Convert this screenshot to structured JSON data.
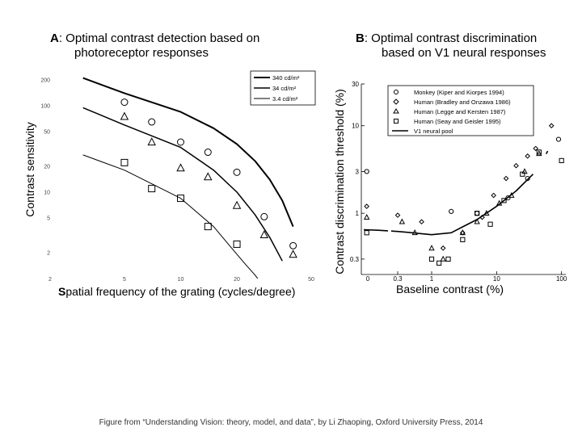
{
  "caption": "Figure from “Understanding Vision: theory, model, and data”, by Li Zhaoping,  Oxford University Press, 2014",
  "chart_data": [
    {
      "type": "scatter",
      "panel": "A",
      "title_prefix": "A",
      "title_line1": ": Optimal contrast detection based on",
      "title_line2": "photoreceptor responses",
      "xlabel_first": "S",
      "xlabel_rest": "patial frequency of the grating (cycles/degree)",
      "ylabel": "Contrast sensitivity",
      "xscale": "log",
      "yscale": "log",
      "xlim": [
        2,
        50
      ],
      "ylim": [
        1,
        300
      ],
      "xticks": [
        2,
        5,
        10,
        20,
        50
      ],
      "xtick_labels": [
        "2",
        "5",
        "10",
        "20",
        "50"
      ],
      "yticks": [
        2,
        5,
        10,
        20,
        50,
        100,
        200
      ],
      "ytick_labels": [
        "2",
        "5",
        "10",
        "20",
        "50",
        "100",
        "200"
      ],
      "legend_position": "top-right",
      "legend": [
        {
          "label": "340 cd/m²",
          "width": 2
        },
        {
          "label": "34 cd/m²",
          "width": 1.5
        },
        {
          "label": "3.4 cd/m²",
          "width": 1
        }
      ],
      "lines": [
        {
          "name": "340 cd/m²",
          "width": 2,
          "x": [
            3,
            5,
            10,
            15,
            20,
            25,
            30,
            35,
            40
          ],
          "y": [
            210,
            140,
            85,
            55,
            36,
            23,
            14,
            8,
            4
          ]
        },
        {
          "name": "34 cd/m²",
          "width": 1.5,
          "x": [
            3,
            5,
            10,
            15,
            20,
            25,
            30,
            35
          ],
          "y": [
            95,
            60,
            33,
            18,
            10,
            5.5,
            3,
            1.6
          ]
        },
        {
          "name": "3.4 cd/m²",
          "width": 1,
          "x": [
            3,
            5,
            10,
            15,
            18,
            22,
            25,
            28
          ],
          "y": [
            27,
            18,
            8.5,
            4,
            2.5,
            1.5,
            1.1,
            0.8
          ]
        }
      ],
      "series": [
        {
          "name": "circles",
          "marker": "circle",
          "x": [
            5,
            7,
            10,
            14,
            20,
            28,
            40
          ],
          "y": [
            110,
            65,
            38,
            29,
            17,
            5.2,
            2.4
          ]
        },
        {
          "name": "triangles",
          "marker": "triangle",
          "x": [
            5,
            7,
            10,
            14,
            20,
            28,
            40
          ],
          "y": [
            75,
            38,
            19,
            15,
            7,
            3.2,
            1.9
          ]
        },
        {
          "name": "squares",
          "marker": "square",
          "x": [
            5,
            7,
            10,
            14,
            20
          ],
          "y": [
            22,
            11,
            8.5,
            4,
            2.5
          ]
        }
      ]
    },
    {
      "type": "scatter",
      "panel": "B",
      "title_prefix": "B",
      "title_line1": ": Optimal contrast discrimination",
      "title_line2": "based on V1 neural responses",
      "xlabel": "Baseline contrast (%)",
      "ylabel": "Contrast discrimination threshold (%)",
      "xscale": "log",
      "yscale": "log",
      "xlim": [
        0.09,
        110
      ],
      "ylim": [
        0.2,
        30
      ],
      "xticks": [
        0.3,
        1,
        10,
        100
      ],
      "xtick_labels": [
        "0.3",
        "1",
        "10",
        "100"
      ],
      "zero_tick_label": "0",
      "yticks": [
        0.3,
        1,
        3,
        10,
        30
      ],
      "ytick_labels": [
        "0.3",
        "1",
        "3",
        "10",
        "30"
      ],
      "legend_position": "top-right",
      "legend": [
        {
          "label": "Monkey (Kiper and Kiorpes 1994)",
          "marker": "circle"
        },
        {
          "label": "Human (Bradley and Onzawa 1986)",
          "marker": "diamond"
        },
        {
          "label": "Human (Legge and Kersten 1987)",
          "marker": "triangle"
        },
        {
          "label": "Human (Seay and Geisler 1995)",
          "marker": "square"
        },
        {
          "label": "V1 neural pool",
          "marker": "line"
        }
      ],
      "neural_pool_line": {
        "x": [
          0.09,
          0.15,
          0.3,
          0.5,
          0.8,
          1,
          2,
          3,
          5,
          10,
          20,
          40,
          60,
          80,
          100
        ],
        "y": [
          0.65,
          0.64,
          0.62,
          0.6,
          0.58,
          0.57,
          0.6,
          0.7,
          0.85,
          1.2,
          1.8,
          3,
          5,
          8,
          12
        ]
      },
      "series": [
        {
          "name": "Monkey (Kiper and Kiorpes 1994)",
          "marker": "circle",
          "x": [
            0.1,
            2,
            5,
            15,
            30,
            90
          ],
          "y": [
            3,
            1.05,
            1,
            1.5,
            2.5,
            7
          ]
        },
        {
          "name": "Human (Bradley and Onzawa 1986)",
          "marker": "diamond",
          "x": [
            0.1,
            0.3,
            0.7,
            1.5,
            3,
            6,
            9,
            14,
            20,
            30,
            40,
            70
          ],
          "y": [
            1.2,
            0.95,
            0.8,
            0.4,
            0.6,
            0.9,
            1.6,
            2.5,
            3.5,
            4.5,
            5.5,
            10
          ]
        },
        {
          "name": "Human (Legge and Kersten 1987)",
          "marker": "triangle",
          "x": [
            0.1,
            0.35,
            0.55,
            1,
            1.5,
            3,
            5,
            7,
            11,
            17,
            27,
            45
          ],
          "y": [
            0.9,
            0.8,
            0.6,
            0.4,
            0.3,
            0.6,
            0.8,
            1,
            1.3,
            1.6,
            3,
            4.8
          ]
        },
        {
          "name": "Human (Seay and Geisler 1995)",
          "marker": "square",
          "x": [
            0.1,
            1,
            1.3,
            1.8,
            3,
            5,
            8,
            13,
            25,
            45,
            100
          ],
          "y": [
            0.6,
            0.3,
            0.27,
            0.3,
            0.5,
            1,
            0.75,
            1.4,
            2.8,
            5,
            4
          ]
        }
      ]
    }
  ]
}
